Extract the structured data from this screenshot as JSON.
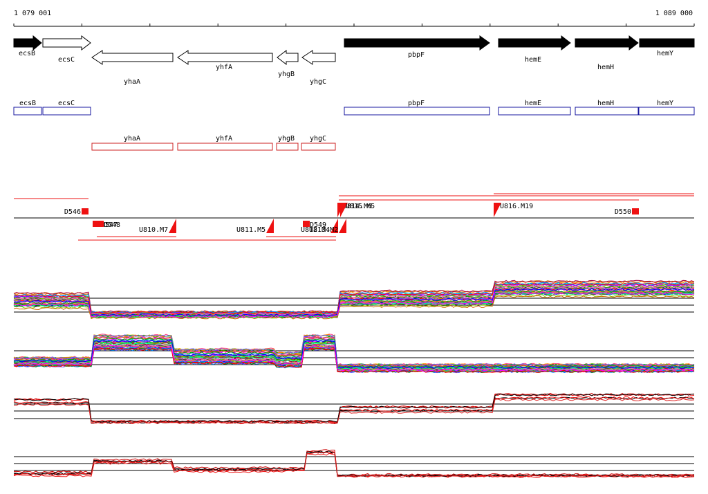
{
  "ruler": {
    "start_label": "1 079 001",
    "end_label": "1 089 000"
  },
  "genes": [
    {
      "name": "ecsB",
      "strand": "+",
      "style": "filled"
    },
    {
      "name": "ecsC",
      "strand": "+",
      "style": "open"
    },
    {
      "name": "yhaA",
      "strand": "-",
      "style": "open"
    },
    {
      "name": "yhfA",
      "strand": "-",
      "style": "open"
    },
    {
      "name": "yhgB",
      "strand": "-",
      "style": "open"
    },
    {
      "name": "yhgC",
      "strand": "-",
      "style": "open"
    },
    {
      "name": "pbpF",
      "strand": "+",
      "style": "filled"
    },
    {
      "name": "hemE",
      "strand": "+",
      "style": "filled"
    },
    {
      "name": "hemH",
      "strand": "+",
      "style": "filled"
    },
    {
      "name": "hemY",
      "strand": "+",
      "style": "filled"
    }
  ],
  "forward_boxes": [
    "ecsB",
    "ecsC",
    "pbpF",
    "hemE",
    "hemH",
    "hemY"
  ],
  "reverse_boxes": [
    "yhaA",
    "yhfA",
    "yhgB",
    "yhgC"
  ],
  "transcription_features": [
    "D546",
    "D547",
    "D548",
    "U810.M7",
    "U811.M5",
    "D549",
    "U812.M4",
    "U813.M2",
    "U814.M6",
    "U815.M5",
    "U816.M19",
    "D550"
  ],
  "colors": {
    "gene_filled": "#000000",
    "forward_box": "#1a1aa0",
    "reverse_box": "#cc2020",
    "feature": "#ee1111",
    "axis": "#000000"
  }
}
